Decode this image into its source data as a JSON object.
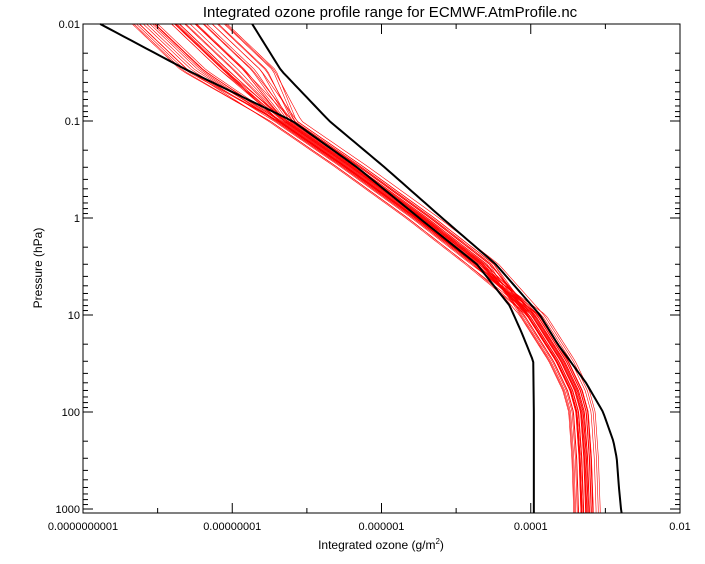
{
  "chart_data": {
    "type": "line",
    "title": "Integrated ozone profile range for ECMWF.AtmProfile.nc",
    "xlabel_main": "Integrated ozone (g/m",
    "xlabel_sup": "2",
    "xlabel_end": ")",
    "ylabel": "Pressure (hPa)",
    "x_scale": "log",
    "y_scale": "log",
    "y_reversed": true,
    "xlim": [
      1e-10,
      0.01
    ],
    "ylim": [
      0.01,
      1100
    ],
    "x_ticks": [
      {
        "value": 1e-10,
        "label": "0.0000000001"
      },
      {
        "value": 1e-08,
        "label": "0.00000001"
      },
      {
        "value": 1e-06,
        "label": "0.000001"
      },
      {
        "value": 0.0001,
        "label": "0.0001"
      },
      {
        "value": 0.01,
        "label": "0.01"
      }
    ],
    "y_ticks": [
      {
        "value": 0.01,
        "label": "0.01"
      },
      {
        "value": 0.1,
        "label": "0.1"
      },
      {
        "value": 1,
        "label": "1"
      },
      {
        "value": 10,
        "label": "10"
      },
      {
        "value": 100,
        "label": "100"
      },
      {
        "value": 1000,
        "label": "1000"
      }
    ],
    "envelope": {
      "color": "#000000",
      "lower": {
        "pressure": [
          0.01,
          0.03,
          0.1,
          0.3,
          1,
          3,
          8,
          15,
          30,
          100,
          300,
          1000,
          1100
        ],
        "ozone": [
          1.7e-10,
          2.5e-09,
          6.4e-08,
          4.7e-07,
          3.2e-06,
          1.9e-05,
          5.2e-05,
          7.5e-05,
          0.000108,
          0.00011,
          0.00011,
          0.00011,
          0.00011
        ]
      },
      "upper": {
        "pressure": [
          0.01,
          0.03,
          0.1,
          0.3,
          1,
          3,
          10,
          20,
          50,
          100,
          200,
          300,
          600,
          1000,
          1100
        ],
        "ozone": [
          1.85e-08,
          4.5e-08,
          2e-07,
          1.1e-06,
          6.5e-06,
          3.4e-05,
          0.000133,
          0.00023,
          0.00055,
          0.00093,
          0.00128,
          0.00142,
          0.00152,
          0.00162,
          0.00165
        ]
      }
    },
    "profiles": {
      "color": "#ff0000",
      "count": 40,
      "base": {
        "pressure": [
          0.01,
          0.03,
          0.1,
          0.3,
          1,
          3,
          10,
          30,
          60,
          100,
          300,
          1000,
          1100
        ],
        "ozone": [
          2e-09,
          9e-09,
          5e-08,
          4e-07,
          3.5e-06,
          2.2e-05,
          0.000105,
          0.00026,
          0.0004,
          0.00048,
          0.00053,
          0.00056,
          0.00056
        ]
      }
    }
  }
}
